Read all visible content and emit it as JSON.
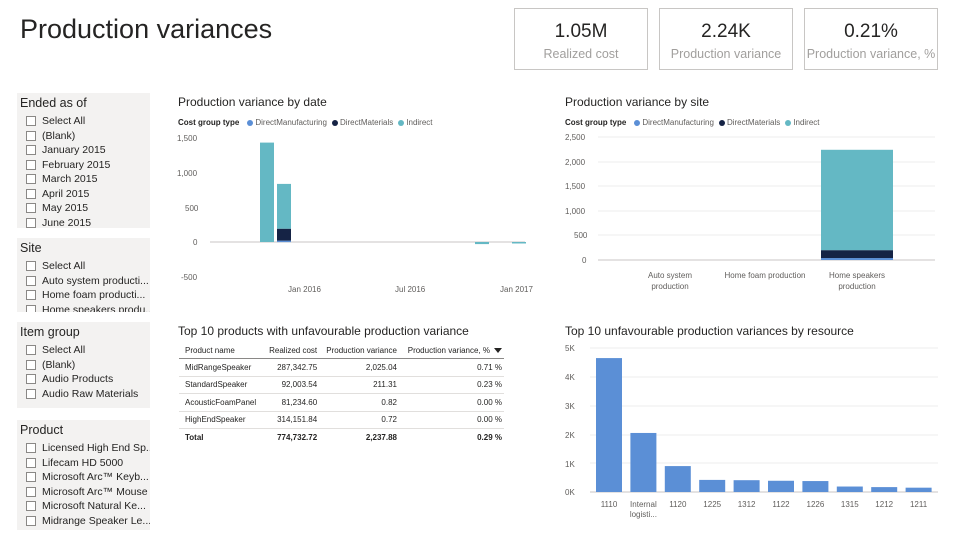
{
  "page": {
    "title": "Production variances"
  },
  "kpis": [
    {
      "value": "1.05M",
      "label": "Realized cost"
    },
    {
      "value": "2.24K",
      "label": "Production variance"
    },
    {
      "value": "0.21%",
      "label": "Production variance, %"
    }
  ],
  "slicers": {
    "ended": {
      "title": "Ended as of",
      "options": [
        "Select All",
        "(Blank)",
        "January 2015",
        "February 2015",
        "March 2015",
        "April 2015",
        "May 2015",
        "June 2015"
      ]
    },
    "site": {
      "title": "Site",
      "options": [
        "Select All",
        "Auto system producti...",
        "Home foam producti...",
        "Home speakers produ..."
      ]
    },
    "item_group": {
      "title": "Item group",
      "options": [
        "Select All",
        "(Blank)",
        "Audio Products",
        "Audio Raw Materials"
      ]
    },
    "product": {
      "title": "Product",
      "options": [
        "Licensed High End Sp...",
        "Lifecam HD 5000",
        "Microsoft Arc™ Keyb...",
        "Microsoft Arc™ Mouse",
        "Microsoft Natural Ke...",
        "Midrange Speaker Le..."
      ]
    }
  },
  "colors": {
    "direct_manufacturing": "#5b8fd6",
    "direct_materials": "#152345",
    "indirect": "#64b8c4",
    "resource_bar": "#5b8fd6"
  },
  "chart_data": [
    {
      "type": "bar",
      "stacked": true,
      "title": "Production variance by date",
      "legend_title": "Cost group type",
      "series_names": [
        "DirectManufacturing",
        "DirectMaterials",
        "Indirect"
      ],
      "x_tick_labels": [
        "Jan 2016",
        "Jul 2016",
        "Jan 2017"
      ],
      "y_tick_labels": [
        "1,500",
        "1,000",
        "500",
        "0",
        "-500"
      ],
      "ylim": [
        -600,
        1550
      ],
      "bars": [
        {
          "period": "Dec 2015",
          "DirectManufacturing": 0,
          "DirectMaterials": 0,
          "Indirect": 1420
        },
        {
          "period": "Jan 2016",
          "DirectManufacturing": 20,
          "DirectMaterials": 170,
          "Indirect": 640
        },
        {
          "period": "Nov 2016",
          "DirectManufacturing": 0,
          "DirectMaterials": 0,
          "Indirect": -30
        },
        {
          "period": "Jan 2017",
          "DirectManufacturing": 0,
          "DirectMaterials": 0,
          "Indirect": -8
        }
      ]
    },
    {
      "type": "bar",
      "stacked": true,
      "title": "Production variance by site",
      "legend_title": "Cost group type",
      "series_names": [
        "DirectManufacturing",
        "DirectMaterials",
        "Indirect"
      ],
      "categories": [
        "Auto system production",
        "Home foam production",
        "Home speakers production"
      ],
      "y_tick_labels": [
        "2,500",
        "2,000",
        "1,500",
        "1,000",
        "500",
        "0"
      ],
      "ylim": [
        0,
        2500
      ],
      "series": [
        {
          "name": "DirectManufacturing",
          "values": [
            0,
            0,
            40
          ]
        },
        {
          "name": "DirectMaterials",
          "values": [
            0,
            0,
            160
          ]
        },
        {
          "name": "Indirect",
          "values": [
            0,
            0,
            2040
          ]
        }
      ]
    },
    {
      "type": "table",
      "title": "Top 10 products with unfavourable production variance",
      "columns": [
        "Product name",
        "Realized cost",
        "Production variance",
        "Production variance, %"
      ],
      "rows": [
        [
          "MidRangeSpeaker",
          "287,342.75",
          "2,025.04",
          "0.71 %"
        ],
        [
          "StandardSpeaker",
          "92,003.54",
          "211.31",
          "0.23 %"
        ],
        [
          "AcousticFoamPanel",
          "81,234.60",
          "0.82",
          "0.00 %"
        ],
        [
          "HighEndSpeaker",
          "314,151.84",
          "0.72",
          "0.00 %"
        ]
      ],
      "total": [
        "Total",
        "774,732.72",
        "2,237.88",
        "0.29 %"
      ]
    },
    {
      "type": "bar",
      "title": "Top 10 unfavourable production variances by resource",
      "categories": [
        "1110",
        "Internal logisti...",
        "1120",
        "1225",
        "1312",
        "1122",
        "1226",
        "1315",
        "1212",
        "1211"
      ],
      "values": [
        4650,
        2050,
        900,
        420,
        410,
        390,
        380,
        190,
        170,
        150
      ],
      "y_tick_labels": [
        "5K",
        "4K",
        "3K",
        "2K",
        "1K",
        "0K"
      ],
      "ylim": [
        0,
        5000
      ]
    }
  ]
}
